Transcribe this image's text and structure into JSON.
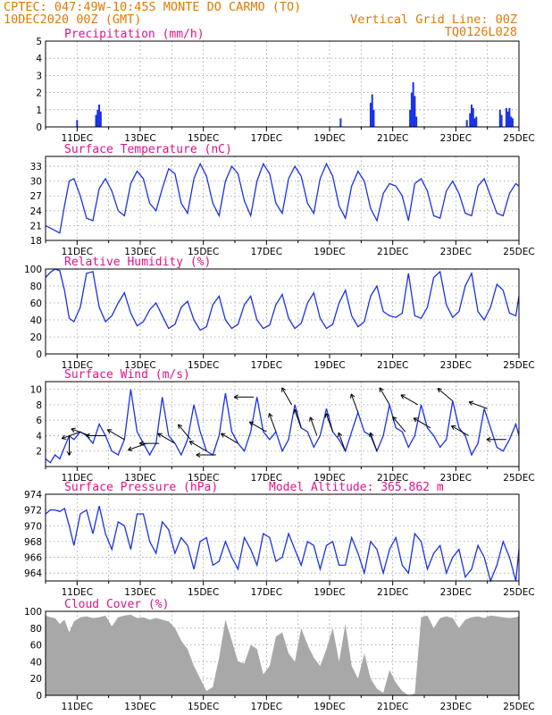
{
  "header": {
    "station": "CPTEC:  047:49W-10:45S  MONTE DO CARMO (TO)",
    "run": "10DEC2020 00Z (GMT)",
    "grid_note": "Vertical Grid Line: 00Z",
    "code": "TQ0126L028"
  },
  "colors": {
    "line": "#1a32e6",
    "bar": "#1a32e6",
    "cloud": "#a8a8a8",
    "header": "#e07b00",
    "title": "#e0138c"
  },
  "chart_data": [
    {
      "id": "precip",
      "type": "bar",
      "title": "Precipitation (mm/h)",
      "ylim": [
        0,
        5
      ],
      "yticks": [
        0,
        1,
        2,
        3,
        4,
        5
      ],
      "x_start": 10.0,
      "x_end": 25.0,
      "xticks": [
        "11DEC",
        "13DEC",
        "15DEC",
        "17DEC",
        "19DEC",
        "21DEC",
        "23DEC",
        "25DEC"
      ],
      "bars": [
        [
          11.0,
          0.4
        ],
        [
          11.6,
          0.7
        ],
        [
          11.65,
          1.0
        ],
        [
          11.7,
          1.3
        ],
        [
          11.75,
          0.9
        ],
        [
          19.35,
          0.5
        ],
        [
          20.3,
          1.4
        ],
        [
          20.35,
          1.9
        ],
        [
          20.4,
          1.0
        ],
        [
          21.55,
          1.0
        ],
        [
          21.6,
          2.0
        ],
        [
          21.65,
          2.6
        ],
        [
          21.7,
          1.8
        ],
        [
          21.75,
          0.6
        ],
        [
          23.35,
          0.4
        ],
        [
          23.45,
          0.8
        ],
        [
          23.5,
          1.3
        ],
        [
          23.55,
          1.1
        ],
        [
          23.6,
          0.5
        ],
        [
          23.65,
          0.6
        ],
        [
          24.4,
          1.0
        ],
        [
          24.45,
          0.7
        ],
        [
          24.6,
          1.1
        ],
        [
          24.65,
          0.9
        ],
        [
          24.7,
          1.1
        ],
        [
          24.75,
          0.6
        ],
        [
          24.8,
          0.5
        ]
      ]
    },
    {
      "id": "temp",
      "type": "line",
      "title": "Surface Temperature (nC)",
      "ylim": [
        18,
        35
      ],
      "yticks": [
        18,
        21,
        24,
        27,
        30,
        33
      ],
      "x_start": 10.0,
      "x_end": 25.0,
      "xticks": [
        "11DEC",
        "13DEC",
        "15DEC",
        "17DEC",
        "19DEC",
        "21DEC",
        "23DEC",
        "25DEC"
      ],
      "x": [
        10.0,
        10.15,
        10.3,
        10.45,
        10.6,
        10.75,
        10.9,
        11.1,
        11.3,
        11.5,
        11.7,
        11.9,
        12.1,
        12.3,
        12.5,
        12.7,
        12.9,
        13.1,
        13.3,
        13.5,
        13.7,
        13.9,
        14.1,
        14.3,
        14.5,
        14.7,
        14.9,
        15.1,
        15.3,
        15.5,
        15.7,
        15.9,
        16.1,
        16.3,
        16.5,
        16.7,
        16.9,
        17.1,
        17.3,
        17.5,
        17.7,
        17.9,
        18.1,
        18.3,
        18.5,
        18.7,
        18.9,
        19.1,
        19.3,
        19.5,
        19.7,
        19.9,
        20.1,
        20.3,
        20.5,
        20.7,
        20.9,
        21.1,
        21.3,
        21.5,
        21.7,
        21.9,
        22.1,
        22.3,
        22.5,
        22.7,
        22.9,
        23.1,
        23.3,
        23.5,
        23.7,
        23.9,
        24.1,
        24.3,
        24.5,
        24.7,
        24.9,
        25.0
      ],
      "y": [
        21.0,
        20.5,
        20.0,
        19.5,
        25.0,
        30.0,
        30.5,
        27.0,
        22.5,
        22.0,
        28.5,
        30.5,
        28.0,
        24.0,
        23.0,
        29.5,
        32.0,
        30.5,
        25.5,
        24.0,
        28.5,
        32.5,
        31.5,
        25.5,
        23.5,
        30.5,
        33.5,
        31.0,
        25.5,
        23.0,
        30.0,
        33.0,
        31.5,
        26.0,
        23.0,
        30.0,
        33.5,
        31.5,
        25.5,
        23.5,
        30.5,
        33.0,
        31.0,
        25.5,
        23.5,
        30.5,
        33.5,
        31.0,
        25.0,
        22.5,
        29.0,
        32.0,
        30.0,
        24.5,
        22.0,
        27.5,
        29.5,
        29.0,
        27.0,
        22.0,
        29.5,
        30.5,
        28.0,
        23.0,
        22.5,
        28.0,
        30.0,
        27.5,
        23.5,
        23.0,
        29.0,
        30.5,
        27.0,
        23.5,
        23.0,
        27.5,
        29.5,
        29.0
      ]
    },
    {
      "id": "rh",
      "type": "line",
      "title": "Relative Humidity (%)",
      "ylim": [
        0,
        100
      ],
      "yticks": [
        0,
        20,
        40,
        60,
        80,
        100
      ],
      "x_start": 10.0,
      "x_end": 25.0,
      "xticks": [
        "11DEC",
        "13DEC",
        "15DEC",
        "17DEC",
        "19DEC",
        "21DEC",
        "23DEC",
        "25DEC"
      ],
      "x": [
        10.0,
        10.15,
        10.3,
        10.45,
        10.6,
        10.75,
        10.9,
        11.1,
        11.3,
        11.5,
        11.7,
        11.9,
        12.1,
        12.3,
        12.5,
        12.7,
        12.9,
        13.1,
        13.3,
        13.5,
        13.7,
        13.9,
        14.1,
        14.3,
        14.5,
        14.7,
        14.9,
        15.1,
        15.3,
        15.5,
        15.7,
        15.9,
        16.1,
        16.3,
        16.5,
        16.7,
        16.9,
        17.1,
        17.3,
        17.5,
        17.7,
        17.9,
        18.1,
        18.3,
        18.5,
        18.7,
        18.9,
        19.1,
        19.3,
        19.5,
        19.7,
        19.9,
        20.1,
        20.3,
        20.5,
        20.7,
        20.9,
        21.1,
        21.3,
        21.5,
        21.7,
        21.9,
        22.1,
        22.3,
        22.5,
        22.7,
        22.9,
        23.1,
        23.3,
        23.5,
        23.7,
        23.9,
        24.1,
        24.3,
        24.5,
        24.7,
        24.9,
        25.0
      ],
      "y": [
        90.0,
        96.0,
        100.0,
        98.0,
        75.0,
        42.0,
        38.0,
        55.0,
        95.0,
        97.0,
        55.0,
        38.0,
        45.0,
        60.0,
        72.0,
        48.0,
        33.0,
        38.0,
        52.0,
        60.0,
        45.0,
        30.0,
        35.0,
        55.0,
        62.0,
        40.0,
        28.0,
        32.0,
        58.0,
        68.0,
        40.0,
        30.0,
        35.0,
        58.0,
        68.0,
        40.0,
        30.0,
        34.0,
        58.0,
        70.0,
        42.0,
        30.0,
        36.0,
        60.0,
        72.0,
        42.0,
        30.0,
        35.0,
        60.0,
        75.0,
        45.0,
        32.0,
        38.0,
        68.0,
        80.0,
        50.0,
        45.0,
        43.0,
        48.0,
        95.0,
        45.0,
        42.0,
        55.0,
        90.0,
        97.0,
        58.0,
        43.0,
        50.0,
        80.0,
        95.0,
        50.0,
        40.0,
        55.0,
        82.0,
        75.0,
        48.0,
        45.0,
        68.0
      ]
    },
    {
      "id": "wind",
      "type": "line",
      "title": "Surface Wind (m/s)",
      "ylim": [
        0,
        11
      ],
      "yticks": [
        2,
        4,
        6,
        8,
        10
      ],
      "x_start": 10.0,
      "x_end": 25.0,
      "xticks": [
        "11DEC",
        "13DEC",
        "15DEC",
        "17DEC",
        "19DEC",
        "21DEC",
        "23DEC",
        "25DEC"
      ],
      "x": [
        10.0,
        10.15,
        10.3,
        10.45,
        10.6,
        10.75,
        10.9,
        11.1,
        11.3,
        11.5,
        11.7,
        11.9,
        12.1,
        12.3,
        12.5,
        12.7,
        12.9,
        13.1,
        13.3,
        13.5,
        13.7,
        13.9,
        14.1,
        14.3,
        14.5,
        14.7,
        14.9,
        15.1,
        15.3,
        15.5,
        15.7,
        15.9,
        16.1,
        16.3,
        16.5,
        16.7,
        16.9,
        17.1,
        17.3,
        17.5,
        17.7,
        17.9,
        18.1,
        18.3,
        18.5,
        18.7,
        18.9,
        19.1,
        19.3,
        19.5,
        19.7,
        19.9,
        20.1,
        20.3,
        20.5,
        20.7,
        20.9,
        21.1,
        21.3,
        21.5,
        21.7,
        21.9,
        22.1,
        22.3,
        22.5,
        22.7,
        22.9,
        23.1,
        23.3,
        23.5,
        23.7,
        23.9,
        24.1,
        24.3,
        24.5,
        24.7,
        24.9,
        25.0
      ],
      "y": [
        1.0,
        0.5,
        1.5,
        1.0,
        2.5,
        4.0,
        3.5,
        4.5,
        4.0,
        3.0,
        5.5,
        4.0,
        2.0,
        1.5,
        3.5,
        10.0,
        4.5,
        3.0,
        1.5,
        3.0,
        9.0,
        4.0,
        3.0,
        1.5,
        3.5,
        8.0,
        4.5,
        2.0,
        1.5,
        4.0,
        9.5,
        4.5,
        3.0,
        2.0,
        4.5,
        9.0,
        4.5,
        3.5,
        4.5,
        2.0,
        3.5,
        8.0,
        5.0,
        4.5,
        2.5,
        4.0,
        7.5,
        4.5,
        3.5,
        2.0,
        4.5,
        7.0,
        4.5,
        4.0,
        2.0,
        4.0,
        8.0,
        5.0,
        4.5,
        2.5,
        4.0,
        8.0,
        5.0,
        4.0,
        2.5,
        3.5,
        8.5,
        5.0,
        4.0,
        1.5,
        3.0,
        7.5,
        5.0,
        2.5,
        2.0,
        3.5,
        5.5,
        4.0
      ],
      "arrows": [
        [
          10.75,
          180
        ],
        [
          11.1,
          250
        ],
        [
          11.4,
          290
        ],
        [
          11.9,
          270
        ],
        [
          12.5,
          300
        ],
        [
          13.2,
          250
        ],
        [
          13.6,
          270
        ],
        [
          14.1,
          300
        ],
        [
          14.6,
          320
        ],
        [
          15.1,
          300
        ],
        [
          15.4,
          270
        ],
        [
          16.1,
          300
        ],
        [
          16.6,
          270
        ],
        [
          17.0,
          300
        ],
        [
          17.3,
          340
        ],
        [
          17.8,
          330
        ],
        [
          18.1,
          340
        ],
        [
          18.6,
          340
        ],
        [
          19.1,
          340
        ],
        [
          19.5,
          340
        ],
        [
          19.9,
          340
        ],
        [
          20.5,
          340
        ],
        [
          20.9,
          330
        ],
        [
          21.4,
          320
        ],
        [
          21.8,
          300
        ],
        [
          22.2,
          300
        ],
        [
          22.9,
          310
        ],
        [
          23.4,
          300
        ],
        [
          24.0,
          290
        ],
        [
          24.6,
          270
        ]
      ]
    },
    {
      "id": "pressure",
      "type": "line",
      "title": "Surface Pressure (hPa)",
      "note": "Model Altitude: 365.862 m",
      "ylim": [
        963,
        974
      ],
      "yticks": [
        964,
        966,
        968,
        970,
        972,
        974
      ],
      "x_start": 10.0,
      "x_end": 25.0,
      "xticks": [
        "11DEC",
        "13DEC",
        "15DEC",
        "17DEC",
        "19DEC",
        "21DEC",
        "23DEC",
        "25DEC"
      ],
      "x": [
        10.0,
        10.15,
        10.3,
        10.45,
        10.6,
        10.75,
        10.9,
        11.1,
        11.3,
        11.5,
        11.7,
        11.9,
        12.1,
        12.3,
        12.5,
        12.7,
        12.9,
        13.1,
        13.3,
        13.5,
        13.7,
        13.9,
        14.1,
        14.3,
        14.5,
        14.7,
        14.9,
        15.1,
        15.3,
        15.5,
        15.7,
        15.9,
        16.1,
        16.3,
        16.5,
        16.7,
        16.9,
        17.1,
        17.3,
        17.5,
        17.7,
        17.9,
        18.1,
        18.3,
        18.5,
        18.7,
        18.9,
        19.1,
        19.3,
        19.5,
        19.7,
        19.9,
        20.1,
        20.3,
        20.5,
        20.7,
        20.9,
        21.1,
        21.3,
        21.5,
        21.7,
        21.9,
        22.1,
        22.3,
        22.5,
        22.7,
        22.9,
        23.1,
        23.3,
        23.5,
        23.7,
        23.9,
        24.1,
        24.3,
        24.5,
        24.7,
        24.9,
        25.0
      ],
      "y": [
        971.5,
        972.0,
        972.0,
        971.8,
        972.2,
        970.0,
        967.5,
        971.5,
        972.0,
        969.0,
        972.5,
        969.0,
        967.0,
        970.5,
        970.0,
        967.0,
        971.5,
        971.5,
        968.0,
        966.5,
        970.5,
        969.5,
        966.5,
        968.5,
        967.5,
        964.5,
        968.0,
        968.5,
        965.0,
        965.5,
        968.0,
        966.0,
        964.5,
        968.5,
        967.0,
        965.0,
        969.0,
        968.5,
        965.5,
        966.0,
        969.0,
        967.0,
        965.0,
        968.0,
        967.5,
        964.5,
        967.5,
        968.0,
        965.0,
        965.0,
        968.5,
        966.5,
        964.0,
        968.0,
        967.0,
        964.0,
        967.0,
        968.5,
        965.0,
        964.0,
        969.0,
        968.0,
        964.5,
        966.5,
        967.5,
        964.0,
        966.0,
        967.0,
        963.5,
        964.5,
        967.5,
        966.0,
        963.0,
        965.0,
        968.0,
        966.0,
        963.0,
        967.0
      ]
    },
    {
      "id": "cloud",
      "type": "area",
      "title": "Cloud Cover (%)",
      "ylim": [
        0,
        100
      ],
      "yticks": [
        0,
        20,
        40,
        60,
        80,
        100
      ],
      "x_start": 10.0,
      "x_end": 25.0,
      "xticks": [
        "11DEC",
        "13DEC",
        "15DEC",
        "17DEC",
        "19DEC",
        "21DEC",
        "23DEC",
        "25DEC"
      ],
      "x": [
        10.0,
        10.15,
        10.3,
        10.45,
        10.6,
        10.75,
        10.9,
        11.1,
        11.3,
        11.5,
        11.7,
        11.9,
        12.1,
        12.3,
        12.5,
        12.7,
        12.9,
        13.1,
        13.3,
        13.5,
        13.7,
        13.9,
        14.1,
        14.3,
        14.5,
        14.7,
        14.9,
        15.1,
        15.3,
        15.5,
        15.7,
        15.9,
        16.1,
        16.3,
        16.5,
        16.7,
        16.9,
        17.1,
        17.3,
        17.5,
        17.7,
        17.9,
        18.1,
        18.3,
        18.5,
        18.7,
        18.9,
        19.1,
        19.3,
        19.5,
        19.7,
        19.9,
        20.1,
        20.3,
        20.5,
        20.7,
        20.9,
        21.1,
        21.3,
        21.5,
        21.7,
        21.9,
        22.1,
        22.3,
        22.5,
        22.7,
        22.9,
        23.1,
        23.3,
        23.5,
        23.7,
        23.9,
        24.1,
        24.3,
        24.5,
        24.7,
        24.9,
        25.0
      ],
      "y": [
        95.0,
        93.0,
        92.0,
        85.0,
        90.0,
        75.0,
        88.0,
        93.0,
        94.0,
        92.0,
        93.0,
        95.0,
        82.0,
        93.0,
        95.0,
        96.0,
        92.0,
        93.0,
        90.0,
        92.0,
        90.0,
        88.0,
        80.0,
        65.0,
        55.0,
        35.0,
        20.0,
        5.0,
        10.0,
        45.0,
        90.0,
        65.0,
        40.0,
        38.0,
        60.0,
        55.0,
        25.0,
        35.0,
        70.0,
        75.0,
        50.0,
        40.0,
        80.0,
        60.0,
        45.0,
        35.0,
        55.0,
        80.0,
        40.0,
        85.0,
        35.0,
        20.0,
        50.0,
        20.0,
        8.0,
        3.0,
        30.0,
        15.0,
        5.0,
        0.0,
        2.0,
        93.0,
        95.0,
        80.0,
        92.0,
        94.0,
        92.0,
        80.0,
        90.0,
        93.0,
        94.0,
        92.0,
        95.0,
        94.0,
        93.0,
        92.0,
        93.0,
        94.0
      ]
    }
  ]
}
